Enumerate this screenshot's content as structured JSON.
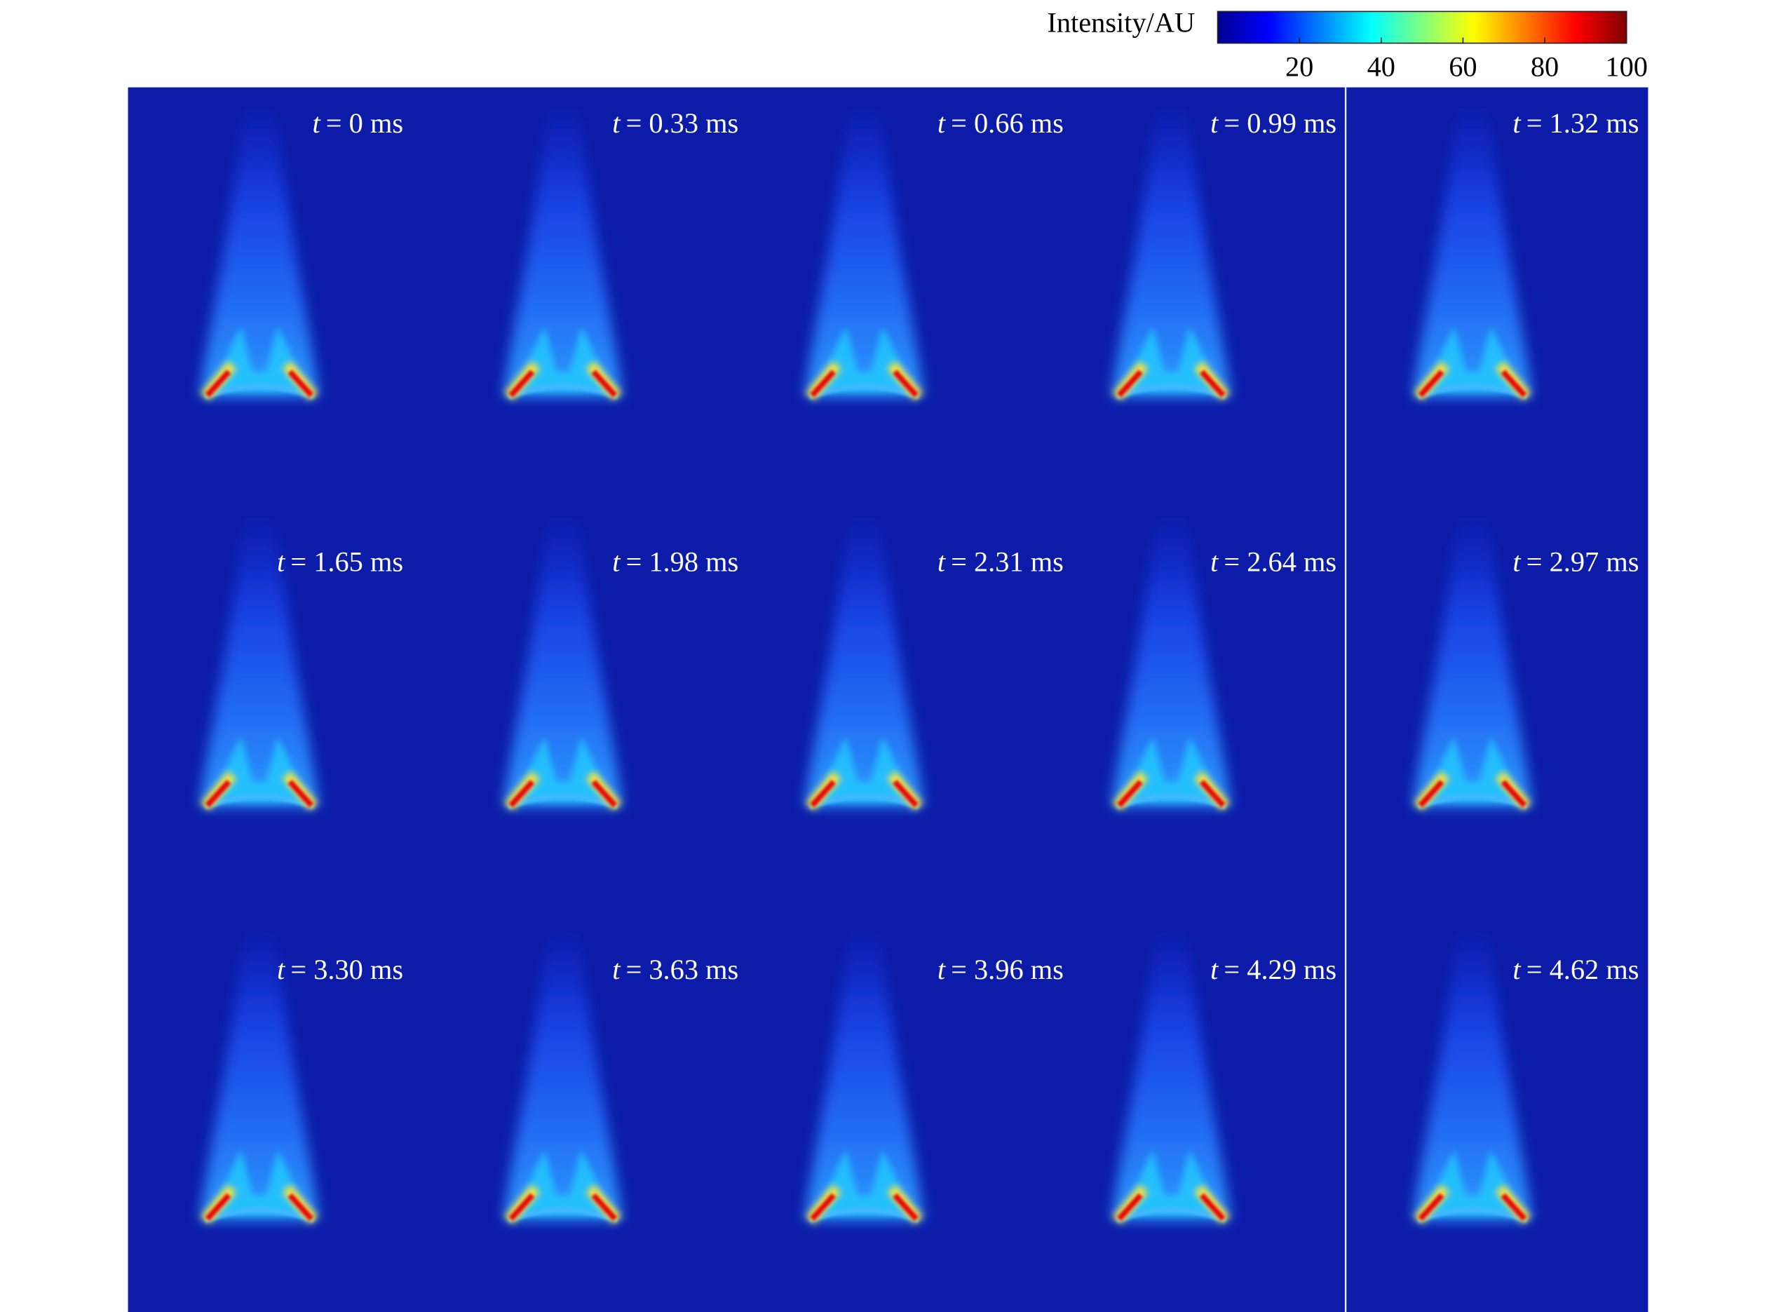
{
  "colorbar": {
    "label": "Intensity/AU",
    "lim": [
      0,
      100
    ],
    "ticks": [
      20,
      40,
      60,
      80,
      100
    ]
  },
  "panels": {
    "variable": "t",
    "labels": [
      "= 0 ms",
      "= 0.33 ms",
      "= 0.66 ms",
      "= 0.99 ms",
      "= 1.32 ms",
      "= 1.65 ms",
      "= 1.98 ms",
      "= 2.31 ms",
      "= 2.64 ms",
      "= 2.97 ms",
      "= 3.30 ms",
      "= 3.63 ms",
      "= 3.96 ms",
      "= 4.29 ms",
      "= 4.62 ms"
    ]
  }
}
